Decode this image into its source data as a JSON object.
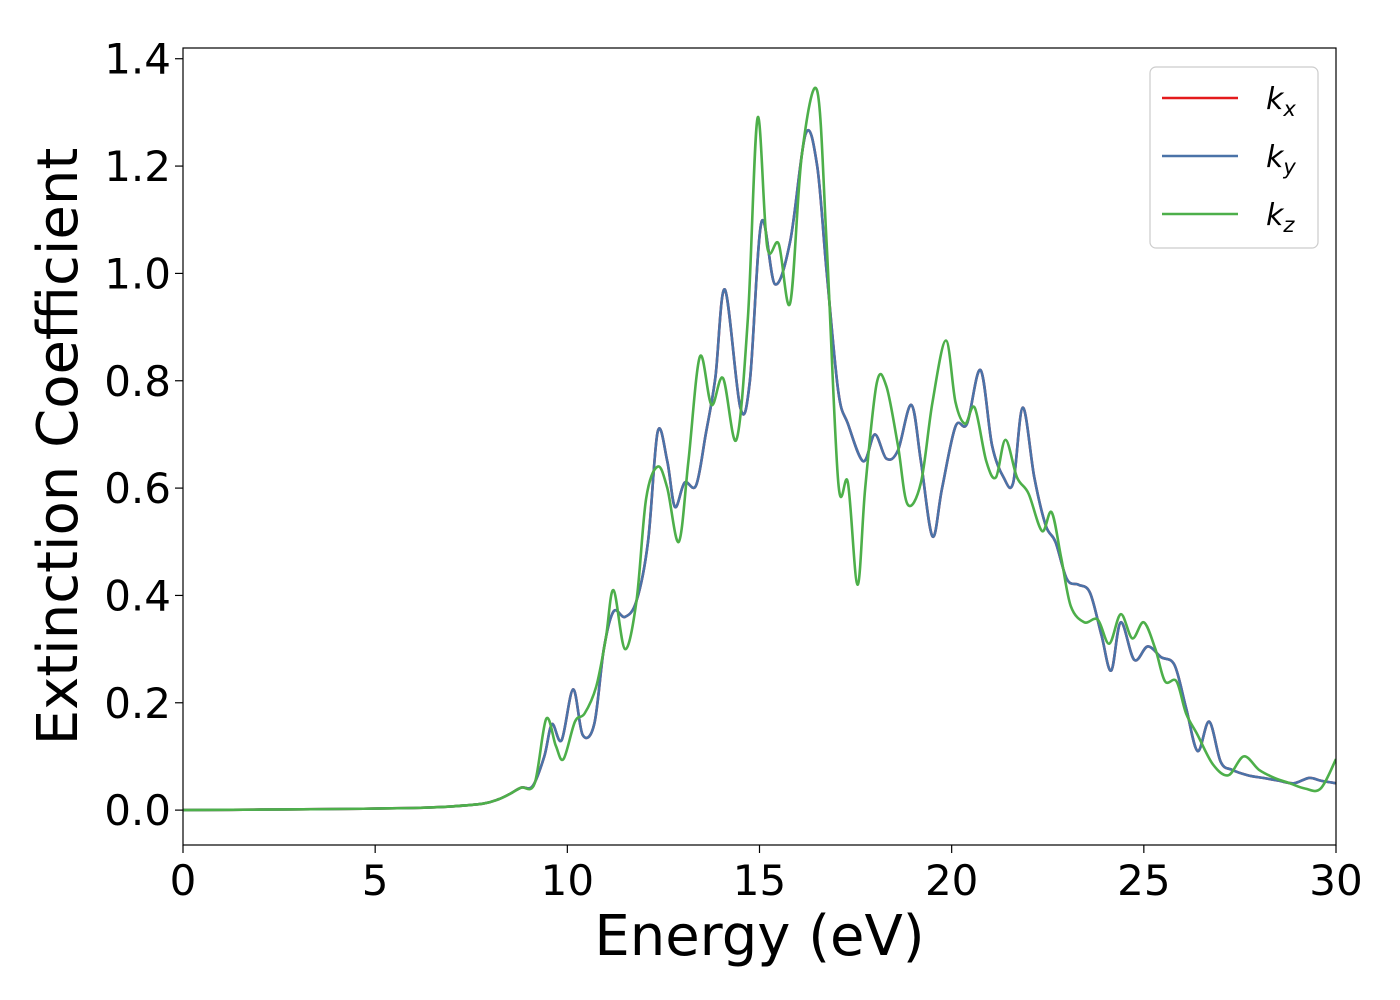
{
  "chart_data": {
    "type": "line",
    "title": "",
    "xlabel": "Energy (eV)",
    "ylabel": "Extinction Coefficient",
    "xlim": [
      0,
      30
    ],
    "ylim": [
      -0.065,
      1.42
    ],
    "xticks": [
      0,
      5,
      10,
      15,
      20,
      25,
      30
    ],
    "xtick_labels": [
      "0",
      "5",
      "10",
      "15",
      "20",
      "25",
      "30"
    ],
    "yticks": [
      0.0,
      0.2,
      0.4,
      0.6,
      0.8,
      1.0,
      1.2,
      1.4
    ],
    "ytick_labels": [
      "0.0",
      "0.2",
      "0.4",
      "0.6",
      "0.8",
      "1.0",
      "1.2",
      "1.4"
    ],
    "grid": false,
    "legend_position": "top-right",
    "series": [
      {
        "name": "k",
        "subscript": "x",
        "color": "#e41a1c",
        "x": [
          0,
          2,
          4,
          6,
          7,
          7.8,
          8.2,
          8.5,
          8.8,
          9.1,
          9.4,
          9.6,
          9.85,
          10.15,
          10.4,
          10.7,
          10.95,
          11.2,
          11.5,
          11.8,
          12.1,
          12.35,
          12.6,
          12.8,
          13.05,
          13.35,
          13.6,
          13.85,
          14.1,
          14.5,
          14.75,
          15.05,
          15.4,
          15.8,
          16.2,
          16.5,
          16.75,
          17.05,
          17.3,
          17.7,
          18.0,
          18.3,
          18.6,
          18.95,
          19.2,
          19.5,
          19.75,
          20.1,
          20.4,
          20.75,
          21.05,
          21.35,
          21.6,
          21.85,
          22.15,
          22.45,
          22.7,
          23.0,
          23.3,
          23.6,
          23.9,
          24.15,
          24.4,
          24.75,
          25.1,
          25.45,
          25.8,
          26.1,
          26.4,
          26.7,
          27.0,
          27.3,
          27.7,
          28.1,
          28.5,
          28.9,
          29.3,
          29.6,
          30.0
        ],
        "y": [
          0.0,
          0.001,
          0.002,
          0.004,
          0.007,
          0.012,
          0.02,
          0.03,
          0.042,
          0.045,
          0.1,
          0.16,
          0.13,
          0.225,
          0.14,
          0.16,
          0.3,
          0.37,
          0.36,
          0.39,
          0.5,
          0.705,
          0.65,
          0.565,
          0.61,
          0.605,
          0.7,
          0.805,
          0.97,
          0.75,
          0.8,
          1.095,
          0.98,
          1.06,
          1.26,
          1.2,
          1.0,
          0.78,
          0.72,
          0.65,
          0.7,
          0.655,
          0.67,
          0.755,
          0.65,
          0.51,
          0.6,
          0.715,
          0.72,
          0.82,
          0.68,
          0.62,
          0.61,
          0.75,
          0.62,
          0.53,
          0.5,
          0.43,
          0.42,
          0.405,
          0.325,
          0.26,
          0.35,
          0.28,
          0.305,
          0.285,
          0.27,
          0.19,
          0.11,
          0.165,
          0.09,
          0.075,
          0.065,
          0.06,
          0.055,
          0.05,
          0.06,
          0.055,
          0.05
        ]
      },
      {
        "name": "k",
        "subscript": "y",
        "color": "#4a73a8",
        "x": [
          0,
          2,
          4,
          6,
          7,
          7.8,
          8.2,
          8.5,
          8.8,
          9.1,
          9.4,
          9.6,
          9.85,
          10.15,
          10.4,
          10.7,
          10.95,
          11.2,
          11.5,
          11.8,
          12.1,
          12.35,
          12.6,
          12.8,
          13.05,
          13.35,
          13.6,
          13.85,
          14.1,
          14.5,
          14.75,
          15.05,
          15.4,
          15.8,
          16.2,
          16.5,
          16.75,
          17.05,
          17.3,
          17.7,
          18.0,
          18.3,
          18.6,
          18.95,
          19.2,
          19.5,
          19.75,
          20.1,
          20.4,
          20.75,
          21.05,
          21.35,
          21.6,
          21.85,
          22.15,
          22.45,
          22.7,
          23.0,
          23.3,
          23.6,
          23.9,
          24.15,
          24.4,
          24.75,
          25.1,
          25.45,
          25.8,
          26.1,
          26.4,
          26.7,
          27.0,
          27.3,
          27.7,
          28.1,
          28.5,
          28.9,
          29.3,
          29.6,
          30.0
        ],
        "y": [
          0.0,
          0.001,
          0.002,
          0.004,
          0.007,
          0.012,
          0.02,
          0.03,
          0.042,
          0.045,
          0.1,
          0.16,
          0.13,
          0.225,
          0.14,
          0.16,
          0.3,
          0.37,
          0.36,
          0.39,
          0.5,
          0.705,
          0.65,
          0.565,
          0.61,
          0.605,
          0.7,
          0.805,
          0.97,
          0.75,
          0.8,
          1.095,
          0.98,
          1.06,
          1.26,
          1.2,
          1.0,
          0.78,
          0.72,
          0.65,
          0.7,
          0.655,
          0.67,
          0.755,
          0.65,
          0.51,
          0.6,
          0.715,
          0.72,
          0.82,
          0.68,
          0.62,
          0.61,
          0.75,
          0.62,
          0.53,
          0.5,
          0.43,
          0.42,
          0.405,
          0.325,
          0.26,
          0.35,
          0.28,
          0.305,
          0.285,
          0.27,
          0.19,
          0.11,
          0.165,
          0.09,
          0.075,
          0.065,
          0.06,
          0.055,
          0.05,
          0.06,
          0.055,
          0.05
        ]
      },
      {
        "name": "k",
        "subscript": "z",
        "color": "#4daf4a",
        "x": [
          0,
          2,
          4,
          6,
          7,
          7.8,
          8.2,
          8.5,
          8.8,
          9.15,
          9.45,
          9.7,
          9.9,
          10.2,
          10.45,
          10.75,
          11.0,
          11.2,
          11.5,
          11.8,
          12.05,
          12.35,
          12.6,
          12.9,
          13.15,
          13.45,
          13.75,
          14.05,
          14.4,
          14.7,
          14.95,
          15.2,
          15.5,
          15.8,
          16.1,
          16.5,
          16.75,
          17.05,
          17.3,
          17.55,
          17.75,
          18.05,
          18.3,
          18.6,
          18.85,
          19.2,
          19.5,
          19.85,
          20.1,
          20.35,
          20.6,
          20.9,
          21.15,
          21.4,
          21.7,
          22.0,
          22.35,
          22.6,
          22.85,
          23.1,
          23.45,
          23.8,
          24.1,
          24.4,
          24.7,
          25.0,
          25.3,
          25.55,
          25.85,
          26.1,
          26.4,
          26.8,
          27.2,
          27.6,
          28.0,
          28.4,
          28.8,
          29.2,
          29.6,
          30.0
        ],
        "y": [
          0.0,
          0.001,
          0.002,
          0.004,
          0.007,
          0.012,
          0.02,
          0.03,
          0.042,
          0.05,
          0.17,
          0.12,
          0.095,
          0.165,
          0.18,
          0.23,
          0.32,
          0.41,
          0.3,
          0.39,
          0.58,
          0.64,
          0.6,
          0.5,
          0.65,
          0.845,
          0.755,
          0.805,
          0.69,
          0.92,
          1.29,
          1.05,
          1.055,
          0.945,
          1.22,
          1.34,
          1.05,
          0.61,
          0.61,
          0.42,
          0.6,
          0.795,
          0.79,
          0.68,
          0.57,
          0.61,
          0.76,
          0.875,
          0.76,
          0.72,
          0.75,
          0.65,
          0.62,
          0.69,
          0.62,
          0.59,
          0.52,
          0.555,
          0.47,
          0.38,
          0.35,
          0.355,
          0.31,
          0.365,
          0.32,
          0.35,
          0.3,
          0.24,
          0.24,
          0.18,
          0.14,
          0.085,
          0.065,
          0.1,
          0.075,
          0.06,
          0.05,
          0.04,
          0.04,
          0.095
        ]
      }
    ]
  }
}
